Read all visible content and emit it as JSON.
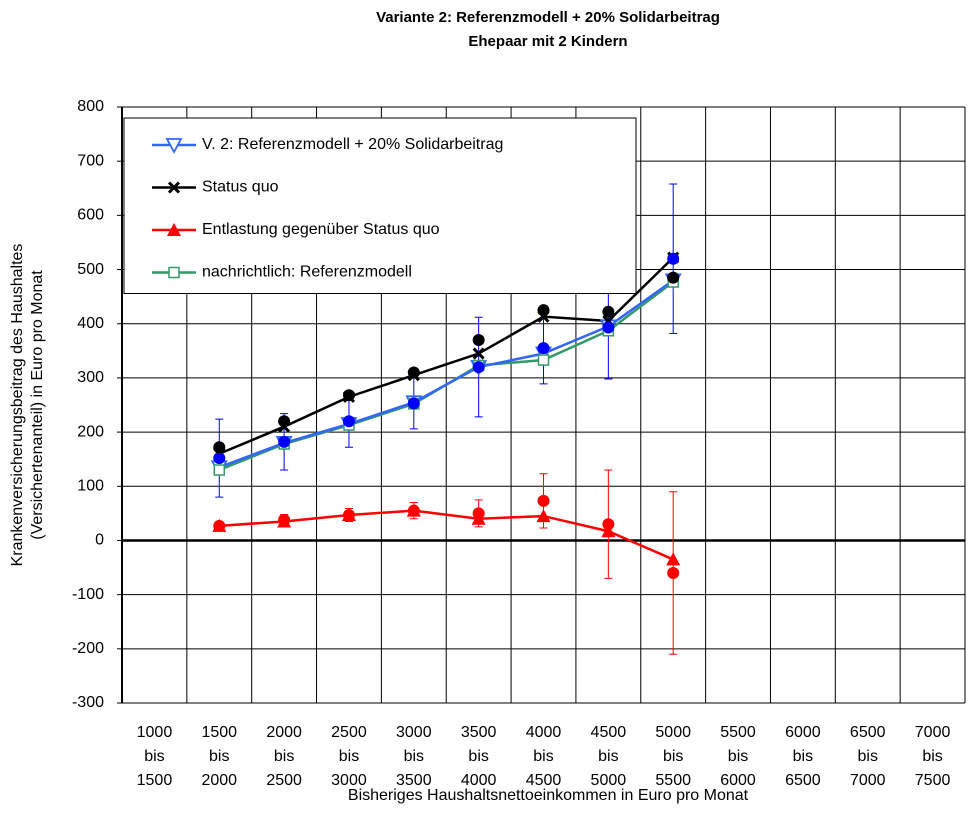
{
  "chart_data": {
    "type": "line",
    "title": "Variante 2: Referenzmodell + 20% Solidarbeitrag",
    "subtitle": "Ehepaar mit 2 Kindern",
    "ylabel": [
      "Krankenversicherungsbeitrag des Haushaltes",
      "(Versichertenanteil) in Euro pro Monat"
    ],
    "xlabel": "Bisheriges Haushaltsnettoeinkommen in Euro pro Monat",
    "categories": [
      [
        "1000",
        "bis",
        "1500"
      ],
      [
        "1500",
        "bis",
        "2000"
      ],
      [
        "2000",
        "bis",
        "2500"
      ],
      [
        "2500",
        "bis",
        "3000"
      ],
      [
        "3000",
        "bis",
        "3500"
      ],
      [
        "3500",
        "bis",
        "4000"
      ],
      [
        "4000",
        "bis",
        "4500"
      ],
      [
        "4500",
        "bis",
        "5000"
      ],
      [
        "5000",
        "bis",
        "5500"
      ],
      [
        "5500",
        "bis",
        "6000"
      ],
      [
        "6000",
        "bis",
        "6500"
      ],
      [
        "6500",
        "bis",
        "7000"
      ],
      [
        "7000",
        "bis",
        "7500"
      ]
    ],
    "ylim": [
      -300,
      800
    ],
    "yticks": [
      -300,
      -200,
      -100,
      0,
      100,
      200,
      300,
      400,
      500,
      600,
      700,
      800
    ],
    "grid": true,
    "legend": "top-left",
    "series": [
      {
        "name": "V. 2: Referenzmodell + 20% Solidarbeitrag",
        "color": "#3366ff",
        "marker": "triangle-down-open",
        "line": true,
        "values": [
          null,
          135,
          180,
          215,
          255,
          320,
          345,
          395,
          480,
          null,
          null,
          null,
          null
        ]
      },
      {
        "name": "Status quo",
        "color": "#000000",
        "marker": "cross",
        "line": true,
        "values": [
          null,
          160,
          210,
          265,
          305,
          345,
          413,
          405,
          522,
          null,
          null,
          null,
          null
        ]
      },
      {
        "name": "Entlastung gegenüber Status quo",
        "color": "#ff0000",
        "marker": "triangle-up",
        "line": true,
        "values": [
          null,
          27,
          35,
          47,
          55,
          40,
          45,
          17,
          -35,
          null,
          null,
          null,
          null
        ]
      },
      {
        "name": "nachrichtlich: Referenzmodell",
        "color": "#339966",
        "marker": "square-open",
        "line": true,
        "values": [
          null,
          130,
          178,
          213,
          252,
          323,
          333,
          387,
          477,
          null,
          null,
          null,
          null
        ]
      },
      {
        "color": "#0000ff",
        "marker": "circle",
        "line": false,
        "values": [
          null,
          152,
          182,
          220,
          253,
          320,
          355,
          393,
          520,
          null,
          null,
          null,
          null
        ],
        "errors": [
          null,
          72,
          52,
          48,
          47,
          92,
          66,
          95,
          138,
          null,
          null,
          null,
          null
        ]
      },
      {
        "color": "#000000",
        "marker": "circle",
        "line": false,
        "values": [
          null,
          172,
          220,
          268,
          310,
          370,
          425,
          422,
          485,
          null,
          null,
          null,
          null
        ]
      },
      {
        "color": "#ff0000",
        "marker": "circle",
        "line": false,
        "values": [
          null,
          27,
          38,
          47,
          55,
          50,
          73,
          30,
          -60,
          null,
          null,
          null,
          null
        ],
        "errors": [
          null,
          0,
          10,
          12,
          15,
          25,
          50,
          100,
          150,
          null,
          null,
          null,
          null
        ]
      }
    ]
  }
}
